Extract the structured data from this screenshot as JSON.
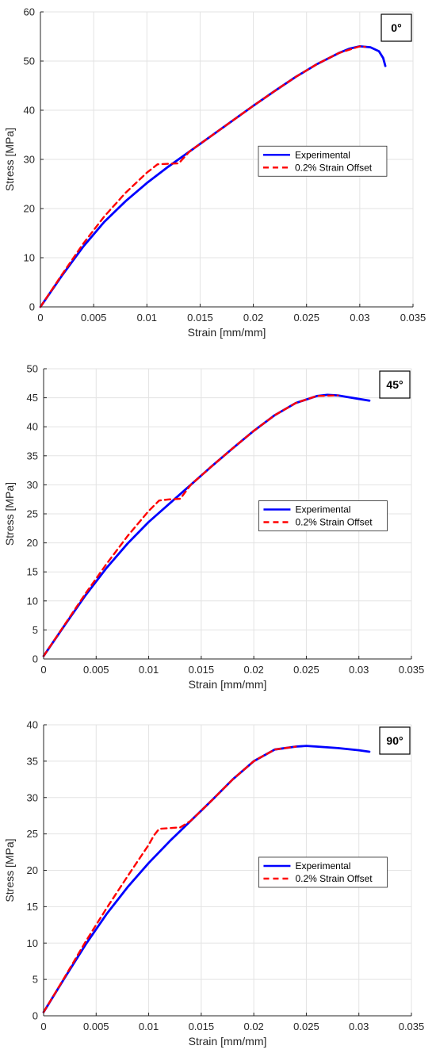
{
  "colors": {
    "experimental": "#0000ff",
    "offset": "#ff0000",
    "grid": "#e3e3e3",
    "axis": "#262626"
  },
  "chart_data": [
    {
      "type": "line",
      "annotation": "0°",
      "xlabel": "Strain [mm/mm]",
      "ylabel": "Stress [MPa]",
      "xlim": [
        0,
        0.035
      ],
      "ylim": [
        0,
        60
      ],
      "xticks": [
        0,
        0.005,
        0.01,
        0.015,
        0.02,
        0.025,
        0.03,
        0.035
      ],
      "xtick_labels": [
        "0",
        "0.005",
        "0.01",
        "0.015",
        "0.02",
        "0.025",
        "0.03",
        "0.035"
      ],
      "yticks": [
        0,
        10,
        20,
        30,
        40,
        50,
        60
      ],
      "ytick_labels": [
        "0",
        "10",
        "20",
        "30",
        "40",
        "50",
        "60"
      ],
      "grid": true,
      "legend_position": "center-right",
      "series": [
        {
          "name": "Experimental",
          "style": "solid",
          "x": [
            0,
            0.002,
            0.004,
            0.006,
            0.008,
            0.01,
            0.012,
            0.014,
            0.016,
            0.018,
            0.02,
            0.022,
            0.024,
            0.026,
            0.028,
            0.029,
            0.03,
            0.031,
            0.0318,
            0.0322,
            0.0324
          ],
          "y": [
            0,
            6.3,
            12.2,
            17.3,
            21.5,
            25.2,
            28.5,
            31.6,
            34.7,
            37.8,
            40.9,
            43.9,
            46.8,
            49.4,
            51.6,
            52.5,
            53,
            52.8,
            52,
            50.6,
            49
          ]
        },
        {
          "name": "0.2% Strain Offset",
          "style": "dashed",
          "x": [
            0,
            0.002,
            0.004,
            0.006,
            0.008,
            0.01,
            0.011,
            0.012,
            0.013,
            0.014,
            0.016,
            0.018,
            0.02,
            0.022,
            0.024,
            0.026,
            0.028,
            0.03,
            0.0305
          ],
          "y": [
            0,
            6.5,
            12.8,
            18.4,
            23.2,
            27.3,
            29,
            29.1,
            29.2,
            31.6,
            34.7,
            37.8,
            40.9,
            43.9,
            46.8,
            49.4,
            51.6,
            53,
            52.9
          ]
        }
      ]
    },
    {
      "type": "line",
      "annotation": "45°",
      "xlabel": "Strain [mm/mm]",
      "ylabel": "Stress [MPa]",
      "xlim": [
        0,
        0.035
      ],
      "ylim": [
        0,
        50
      ],
      "xticks": [
        0,
        0.005,
        0.01,
        0.015,
        0.02,
        0.025,
        0.03,
        0.035
      ],
      "xtick_labels": [
        "0",
        "0.005",
        "0.01",
        "0.015",
        "0.02",
        "0.025",
        "0.03",
        "0.035"
      ],
      "yticks": [
        0,
        5,
        10,
        15,
        20,
        25,
        30,
        35,
        40,
        45,
        50
      ],
      "ytick_labels": [
        "0",
        "5",
        "10",
        "15",
        "20",
        "25",
        "30",
        "35",
        "40",
        "45",
        "50"
      ],
      "grid": true,
      "legend_position": "center-right",
      "series": [
        {
          "name": "Experimental",
          "style": "solid",
          "x": [
            0,
            0.002,
            0.004,
            0.006,
            0.008,
            0.01,
            0.012,
            0.014,
            0.016,
            0.018,
            0.02,
            0.022,
            0.024,
            0.026,
            0.027,
            0.028,
            0.029,
            0.03,
            0.031
          ],
          "y": [
            0.5,
            5.8,
            11,
            15.7,
            19.9,
            23.6,
            26.8,
            30,
            33.2,
            36.3,
            39.3,
            42,
            44.1,
            45.3,
            45.5,
            45.4,
            45.1,
            44.8,
            44.5
          ]
        },
        {
          "name": "0.2% Strain Offset",
          "style": "dashed",
          "x": [
            0,
            0.002,
            0.004,
            0.006,
            0.008,
            0.01,
            0.011,
            0.012,
            0.013,
            0.014,
            0.016,
            0.018,
            0.02,
            0.022,
            0.024,
            0.026,
            0.028
          ],
          "y": [
            0.5,
            5.9,
            11.3,
            16.4,
            21.2,
            25.5,
            27.3,
            27.5,
            27.6,
            30,
            33.2,
            36.3,
            39.3,
            42,
            44.1,
            45.3,
            45.4
          ]
        }
      ]
    },
    {
      "type": "line",
      "annotation": "90°",
      "xlabel": "Strain [mm/mm]",
      "ylabel": "Stress [MPa]",
      "xlim": [
        0,
        0.035
      ],
      "ylim": [
        0,
        40
      ],
      "xticks": [
        0,
        0.005,
        0.01,
        0.015,
        0.02,
        0.025,
        0.03,
        0.035
      ],
      "xtick_labels": [
        "0",
        "0.005",
        "0.01",
        "0.015",
        "0.02",
        "0.025",
        "0.03",
        "0.035"
      ],
      "yticks": [
        0,
        5,
        10,
        15,
        20,
        25,
        30,
        35,
        40
      ],
      "ytick_labels": [
        "0",
        "5",
        "10",
        "15",
        "20",
        "25",
        "30",
        "35",
        "40"
      ],
      "grid": true,
      "legend_position": "center-right",
      "series": [
        {
          "name": "Experimental",
          "style": "solid",
          "x": [
            0,
            0.002,
            0.004,
            0.006,
            0.008,
            0.01,
            0.012,
            0.014,
            0.016,
            0.018,
            0.02,
            0.022,
            0.024,
            0.025,
            0.026,
            0.028,
            0.03,
            0.031
          ],
          "y": [
            0.5,
            5.2,
            9.8,
            14,
            17.7,
            21,
            24,
            26.8,
            29.6,
            32.5,
            35,
            36.6,
            37,
            37.1,
            37,
            36.8,
            36.5,
            36.3
          ]
        },
        {
          "name": "0.2% Strain Offset",
          "style": "dashed",
          "x": [
            0,
            0.002,
            0.004,
            0.006,
            0.008,
            0.01,
            0.0105,
            0.011,
            0.012,
            0.013,
            0.014,
            0.016,
            0.018,
            0.02,
            0.022,
            0.024
          ],
          "y": [
            0.5,
            5.3,
            10.2,
            14.8,
            19.2,
            23.5,
            24.8,
            25.7,
            25.8,
            25.9,
            26.8,
            29.6,
            32.5,
            35,
            36.6,
            37
          ]
        }
      ]
    }
  ]
}
